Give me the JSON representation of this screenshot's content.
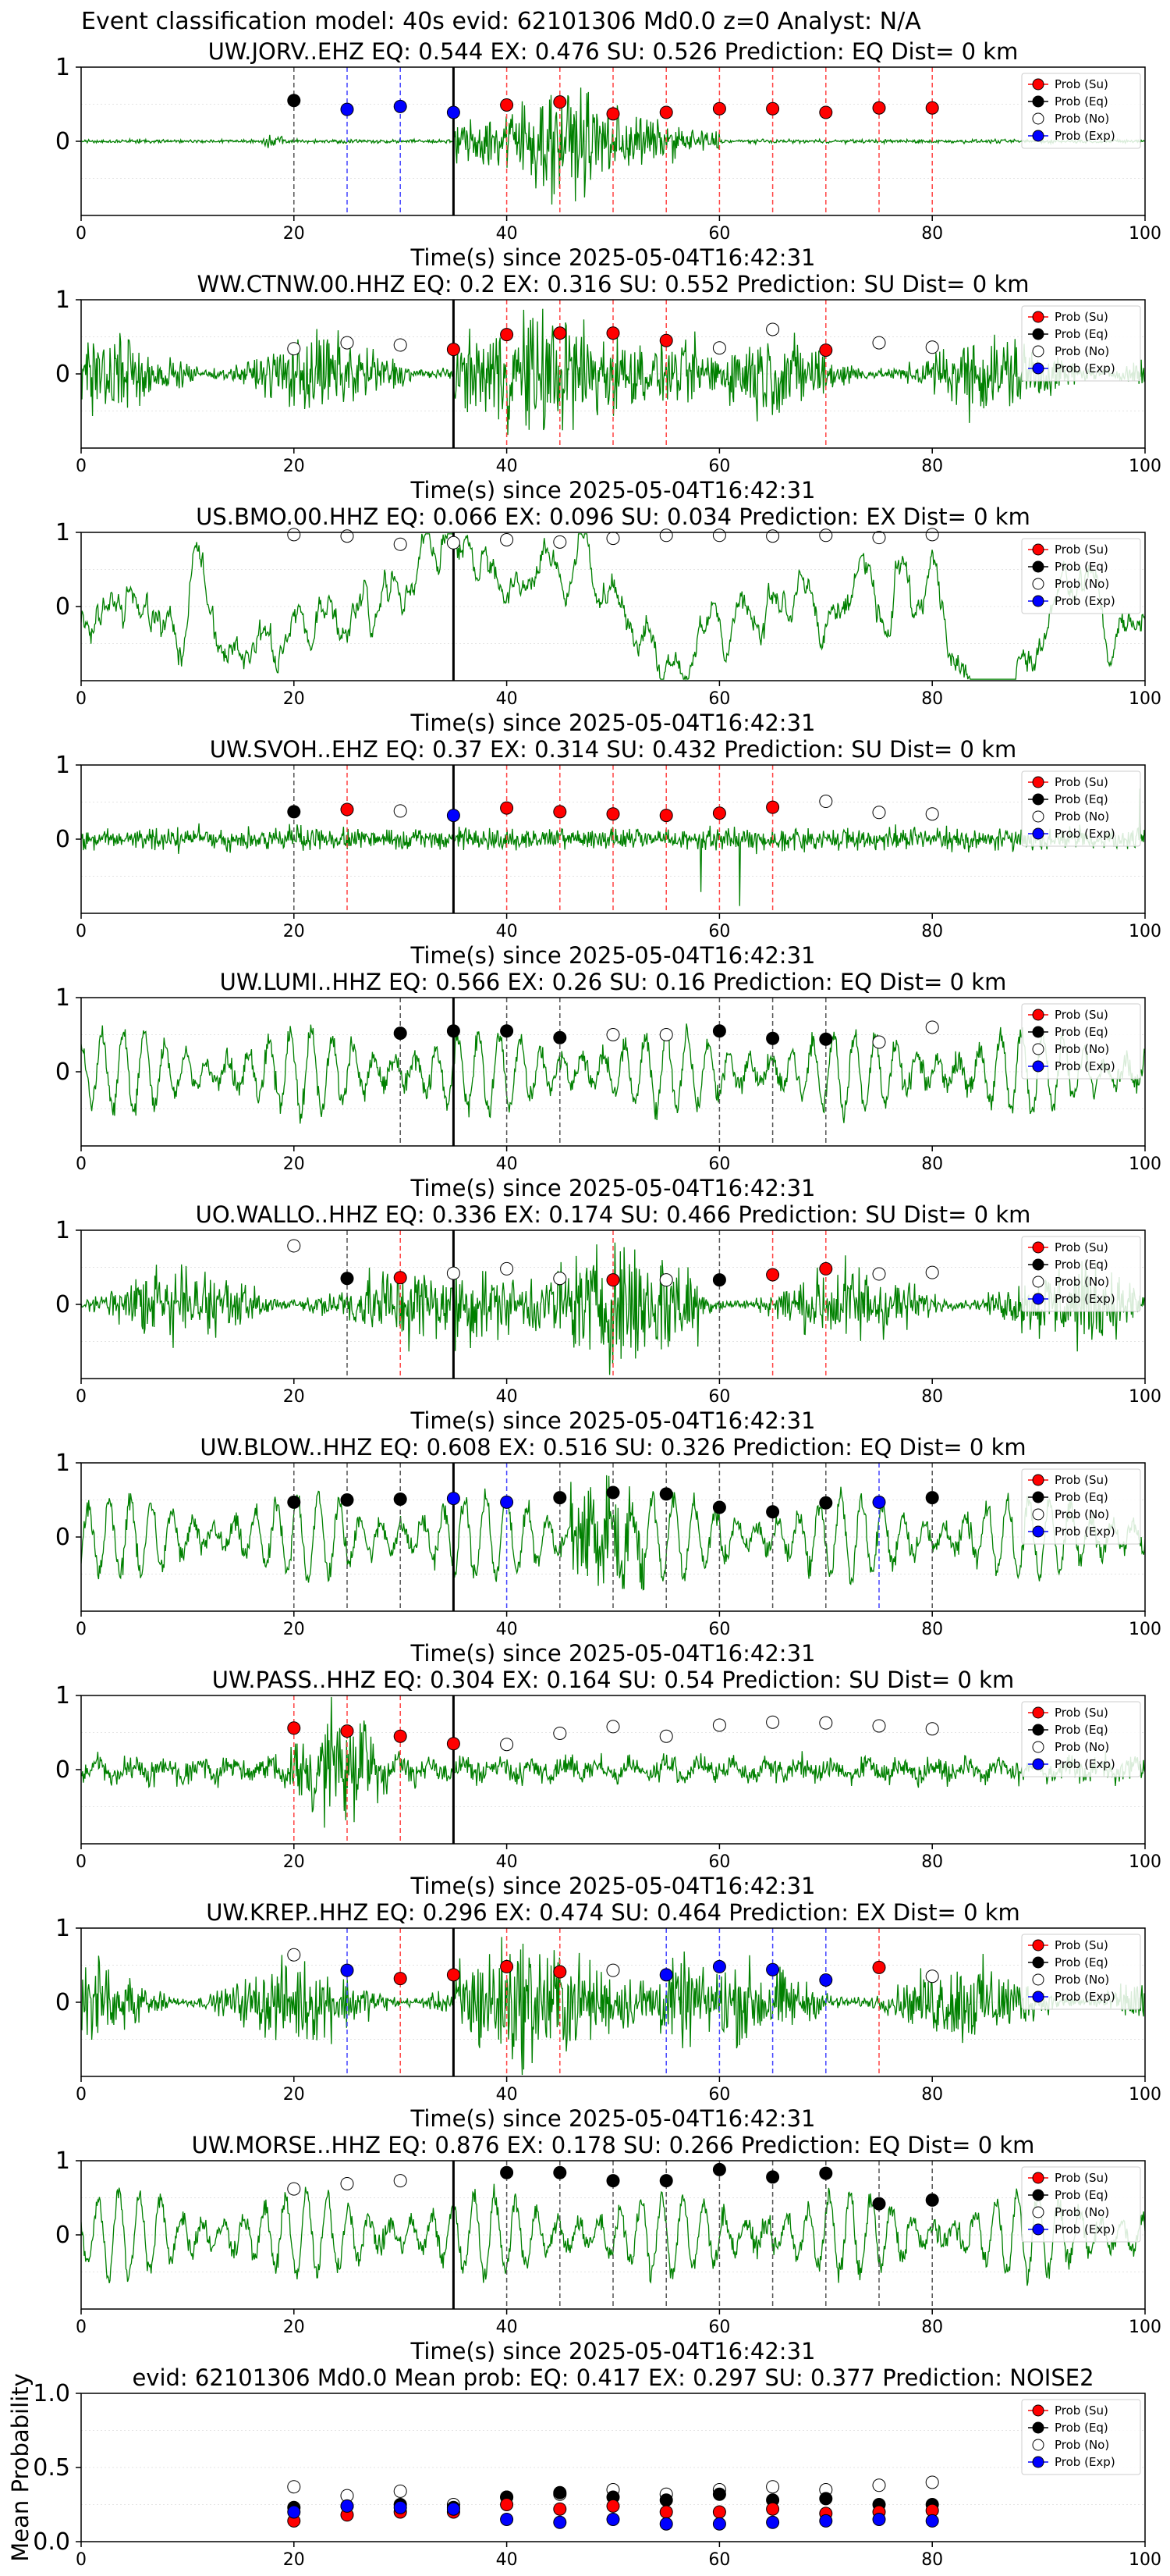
{
  "figure": {
    "suptitle": "Event classification model: 40s evid: 62101306 Md0.0 z=0 Analyst: N/A",
    "xlabel": "Time(s) since 2025-05-04T16:42:31",
    "legend": [
      "Prob (Su)",
      "Prob (Eq)",
      "Prob (No)",
      "Prob (Exp)"
    ]
  },
  "colors": {
    "su": "#ff0000",
    "eq": "#000000",
    "no": "#ffffff",
    "exp": "#0000ff",
    "waveform": "#008000",
    "eq_line": "#555555",
    "su_line": "#ff4444",
    "exp_line": "#4444ff"
  },
  "chart_data": [
    {
      "type": "line",
      "title": "UW.JORV..EHZ   EQ: 0.544  EX: 0.476  SU: 0.526   Prediction: EQ    Dist= 0 km",
      "xlim": [
        0,
        100
      ],
      "ylim": [
        -1,
        1
      ],
      "xticks": [
        0,
        20,
        40,
        60,
        80,
        100
      ],
      "yticks": [
        0,
        1
      ],
      "grid": true,
      "legend_position": "top-right",
      "onset": 35,
      "waveform_style": "impulsive",
      "points": [
        [
          20,
          0.55,
          "eq"
        ],
        [
          25,
          0.43,
          "exp"
        ],
        [
          30,
          0.47,
          "exp"
        ],
        [
          35,
          0.39,
          "exp"
        ],
        [
          40,
          0.49,
          "su"
        ],
        [
          45,
          0.53,
          "su"
        ],
        [
          50,
          0.37,
          "su"
        ],
        [
          55,
          0.39,
          "su"
        ],
        [
          60,
          0.44,
          "su"
        ],
        [
          65,
          0.44,
          "su"
        ],
        [
          70,
          0.39,
          "su"
        ],
        [
          75,
          0.45,
          "su"
        ],
        [
          80,
          0.45,
          "su"
        ]
      ]
    },
    {
      "type": "line",
      "title": "WW.CTNW.00.HHZ   EQ: 0.2  EX: 0.316  SU: 0.552   Prediction: SU    Dist= 0 km",
      "xlim": [
        0,
        100
      ],
      "ylim": [
        -1,
        1
      ],
      "xticks": [
        0,
        20,
        40,
        60,
        80,
        100
      ],
      "yticks": [
        0,
        1
      ],
      "grid": true,
      "legend_position": "top-right",
      "onset": 35,
      "waveform_style": "noisy",
      "points": [
        [
          20,
          0.34,
          "no"
        ],
        [
          25,
          0.42,
          "no"
        ],
        [
          30,
          0.39,
          "no"
        ],
        [
          35,
          0.33,
          "su"
        ],
        [
          40,
          0.53,
          "su"
        ],
        [
          45,
          0.55,
          "su"
        ],
        [
          50,
          0.55,
          "su"
        ],
        [
          55,
          0.45,
          "su"
        ],
        [
          60,
          0.35,
          "no"
        ],
        [
          65,
          0.6,
          "no"
        ],
        [
          70,
          0.32,
          "su"
        ],
        [
          75,
          0.42,
          "no"
        ],
        [
          80,
          0.36,
          "no"
        ]
      ]
    },
    {
      "type": "line",
      "title": "US.BMO.00.HHZ   EQ: 0.066  EX: 0.096  SU: 0.034   Prediction: EX    Dist= 0 km",
      "xlim": [
        0,
        100
      ],
      "ylim": [
        -1,
        1
      ],
      "xticks": [
        0,
        20,
        40,
        60,
        80,
        100
      ],
      "yticks": [
        0,
        1
      ],
      "grid": true,
      "legend_position": "top-right",
      "onset": 35,
      "waveform_style": "swell",
      "points": [
        [
          20,
          0.97,
          "no"
        ],
        [
          25,
          0.95,
          "no"
        ],
        [
          30,
          0.84,
          "no"
        ],
        [
          35,
          0.86,
          "no"
        ],
        [
          40,
          0.9,
          "no"
        ],
        [
          45,
          0.87,
          "no"
        ],
        [
          50,
          0.92,
          "no"
        ],
        [
          55,
          0.96,
          "no"
        ],
        [
          60,
          0.96,
          "no"
        ],
        [
          65,
          0.95,
          "no"
        ],
        [
          70,
          0.96,
          "no"
        ],
        [
          75,
          0.93,
          "no"
        ],
        [
          80,
          0.97,
          "no"
        ]
      ]
    },
    {
      "type": "line",
      "title": "UW.SVOH..EHZ   EQ: 0.37  EX: 0.314  SU: 0.432   Prediction: SU    Dist= 0 km",
      "xlim": [
        0,
        100
      ],
      "ylim": [
        -1,
        1
      ],
      "xticks": [
        0,
        20,
        40,
        60,
        80,
        100
      ],
      "yticks": [
        0,
        1
      ],
      "grid": true,
      "legend_position": "top-right",
      "onset": 35,
      "waveform_style": "spiky",
      "points": [
        [
          20,
          0.37,
          "eq"
        ],
        [
          25,
          0.4,
          "su"
        ],
        [
          30,
          0.38,
          "no"
        ],
        [
          35,
          0.32,
          "exp"
        ],
        [
          40,
          0.42,
          "su"
        ],
        [
          45,
          0.37,
          "su"
        ],
        [
          50,
          0.34,
          "su"
        ],
        [
          55,
          0.32,
          "su"
        ],
        [
          60,
          0.35,
          "su"
        ],
        [
          65,
          0.43,
          "su"
        ],
        [
          70,
          0.51,
          "no"
        ],
        [
          75,
          0.36,
          "no"
        ],
        [
          80,
          0.34,
          "no"
        ]
      ]
    },
    {
      "type": "line",
      "title": "UW.LUMI..HHZ   EQ: 0.566  EX: 0.26  SU: 0.16   Prediction: EQ    Dist= 0 km",
      "xlim": [
        0,
        100
      ],
      "ylim": [
        -1,
        1
      ],
      "xticks": [
        0,
        20,
        40,
        60,
        80,
        100
      ],
      "yticks": [
        0,
        1
      ],
      "grid": true,
      "legend_position": "top-right",
      "onset": 35,
      "waveform_style": "oscillating",
      "points": [
        [
          30,
          0.52,
          "eq"
        ],
        [
          35,
          0.55,
          "eq"
        ],
        [
          40,
          0.55,
          "eq"
        ],
        [
          45,
          0.46,
          "eq"
        ],
        [
          50,
          0.5,
          "no"
        ],
        [
          55,
          0.5,
          "no"
        ],
        [
          60,
          0.55,
          "eq"
        ],
        [
          65,
          0.45,
          "eq"
        ],
        [
          70,
          0.44,
          "eq"
        ],
        [
          75,
          0.4,
          "no"
        ],
        [
          80,
          0.6,
          "no"
        ]
      ]
    },
    {
      "type": "line",
      "title": "UO.WALLO..HHZ   EQ: 0.336  EX: 0.174  SU: 0.466   Prediction: SU    Dist= 0 km",
      "xlim": [
        0,
        100
      ],
      "ylim": [
        -1,
        1
      ],
      "xticks": [
        0,
        20,
        40,
        60,
        80,
        100
      ],
      "yticks": [
        0,
        1
      ],
      "grid": true,
      "legend_position": "top-right",
      "onset": 35,
      "waveform_style": "noisy",
      "points": [
        [
          20,
          0.79,
          "no"
        ],
        [
          25,
          0.35,
          "eq"
        ],
        [
          30,
          0.36,
          "su"
        ],
        [
          35,
          0.42,
          "no"
        ],
        [
          40,
          0.48,
          "no"
        ],
        [
          45,
          0.35,
          "no"
        ],
        [
          50,
          0.33,
          "su"
        ],
        [
          55,
          0.33,
          "no"
        ],
        [
          60,
          0.33,
          "eq"
        ],
        [
          65,
          0.4,
          "su"
        ],
        [
          70,
          0.48,
          "su"
        ],
        [
          75,
          0.41,
          "no"
        ],
        [
          80,
          0.43,
          "no"
        ]
      ]
    },
    {
      "type": "line",
      "title": "UW.BLOW..HHZ   EQ: 0.608  EX: 0.516  SU: 0.326   Prediction: EQ    Dist= 0 km",
      "xlim": [
        0,
        100
      ],
      "ylim": [
        -1,
        1
      ],
      "xticks": [
        0,
        20,
        40,
        60,
        80,
        100
      ],
      "yticks": [
        0,
        1
      ],
      "grid": true,
      "legend_position": "top-right",
      "onset": 35,
      "waveform_style": "oscillating",
      "points": [
        [
          20,
          0.47,
          "eq"
        ],
        [
          25,
          0.5,
          "eq"
        ],
        [
          30,
          0.51,
          "eq"
        ],
        [
          35,
          0.52,
          "exp"
        ],
        [
          40,
          0.47,
          "exp"
        ],
        [
          45,
          0.53,
          "eq"
        ],
        [
          50,
          0.6,
          "eq"
        ],
        [
          55,
          0.58,
          "eq"
        ],
        [
          60,
          0.4,
          "eq"
        ],
        [
          65,
          0.34,
          "eq"
        ],
        [
          70,
          0.46,
          "eq"
        ],
        [
          75,
          0.47,
          "exp"
        ],
        [
          80,
          0.53,
          "eq"
        ]
      ]
    },
    {
      "type": "line",
      "title": "UW.PASS..HHZ   EQ: 0.304  EX: 0.164  SU: 0.54   Prediction: SU    Dist= 0 km",
      "xlim": [
        0,
        100
      ],
      "ylim": [
        -1,
        1
      ],
      "xticks": [
        0,
        20,
        40,
        60,
        80,
        100
      ],
      "yticks": [
        0,
        1
      ],
      "grid": true,
      "legend_position": "top-right",
      "onset": 35,
      "waveform_style": "early-burst",
      "points": [
        [
          20,
          0.56,
          "su"
        ],
        [
          25,
          0.52,
          "su"
        ],
        [
          30,
          0.45,
          "su"
        ],
        [
          35,
          0.35,
          "su"
        ],
        [
          40,
          0.34,
          "no"
        ],
        [
          45,
          0.49,
          "no"
        ],
        [
          50,
          0.58,
          "no"
        ],
        [
          55,
          0.45,
          "no"
        ],
        [
          60,
          0.6,
          "no"
        ],
        [
          65,
          0.64,
          "no"
        ],
        [
          70,
          0.63,
          "no"
        ],
        [
          75,
          0.59,
          "no"
        ],
        [
          80,
          0.55,
          "no"
        ]
      ]
    },
    {
      "type": "line",
      "title": "UW.KREP..HHZ   EQ: 0.296  EX: 0.474  SU: 0.464   Prediction: EX    Dist= 0 km",
      "xlim": [
        0,
        100
      ],
      "ylim": [
        -1,
        1
      ],
      "xticks": [
        0,
        20,
        40,
        60,
        80,
        100
      ],
      "yticks": [
        0,
        1
      ],
      "grid": true,
      "legend_position": "top-right",
      "onset": 35,
      "waveform_style": "noisy",
      "points": [
        [
          20,
          0.64,
          "no"
        ],
        [
          25,
          0.43,
          "exp"
        ],
        [
          30,
          0.32,
          "su"
        ],
        [
          35,
          0.37,
          "su"
        ],
        [
          40,
          0.48,
          "su"
        ],
        [
          45,
          0.41,
          "su"
        ],
        [
          50,
          0.43,
          "no"
        ],
        [
          55,
          0.37,
          "exp"
        ],
        [
          60,
          0.48,
          "exp"
        ],
        [
          65,
          0.44,
          "exp"
        ],
        [
          70,
          0.3,
          "exp"
        ],
        [
          75,
          0.47,
          "su"
        ],
        [
          80,
          0.35,
          "no"
        ]
      ]
    },
    {
      "type": "line",
      "title": "UW.MORSE..HHZ   EQ: 0.876  EX: 0.178  SU: 0.266   Prediction: EQ    Dist= 0 km",
      "xlim": [
        0,
        100
      ],
      "ylim": [
        -1,
        1
      ],
      "xticks": [
        0,
        20,
        40,
        60,
        80,
        100
      ],
      "yticks": [
        0,
        1
      ],
      "grid": true,
      "legend_position": "top-right",
      "onset": 35,
      "waveform_style": "oscillating",
      "points": [
        [
          20,
          0.62,
          "no"
        ],
        [
          25,
          0.69,
          "no"
        ],
        [
          30,
          0.73,
          "no"
        ],
        [
          40,
          0.84,
          "eq"
        ],
        [
          45,
          0.84,
          "eq"
        ],
        [
          50,
          0.73,
          "eq"
        ],
        [
          55,
          0.73,
          "eq"
        ],
        [
          60,
          0.88,
          "eq"
        ],
        [
          65,
          0.78,
          "eq"
        ],
        [
          70,
          0.83,
          "eq"
        ],
        [
          75,
          0.42,
          "eq"
        ],
        [
          80,
          0.47,
          "eq"
        ]
      ]
    },
    {
      "type": "scatter",
      "title": "evid: 62101306  Md0.0   Mean prob:   EQ: 0.417  EX: 0.297  SU: 0.377   Prediction: NOISE2",
      "ylabel": "Mean Probability",
      "xlim": [
        0,
        100
      ],
      "ylim": [
        0,
        1
      ],
      "xticks": [
        0,
        20,
        40,
        60,
        80,
        100
      ],
      "yticks": [
        0,
        0.5,
        1
      ],
      "ytick_labels": [
        "0.0",
        "0.5",
        "1.0"
      ],
      "grid": true,
      "legend_position": "top-right",
      "x": [
        20,
        25,
        30,
        35,
        40,
        45,
        50,
        55,
        60,
        65,
        70,
        75,
        80
      ],
      "series": [
        {
          "key": "no",
          "values": [
            0.37,
            0.31,
            0.34,
            0.25,
            0.3,
            0.32,
            0.35,
            0.32,
            0.35,
            0.37,
            0.35,
            0.38,
            0.4
          ]
        },
        {
          "key": "eq",
          "values": [
            0.23,
            0.24,
            0.25,
            0.23,
            0.3,
            0.33,
            0.3,
            0.28,
            0.32,
            0.28,
            0.29,
            0.25,
            0.25
          ]
        },
        {
          "key": "su",
          "values": [
            0.14,
            0.18,
            0.2,
            0.2,
            0.25,
            0.22,
            0.24,
            0.2,
            0.2,
            0.22,
            0.19,
            0.2,
            0.21
          ]
        },
        {
          "key": "exp",
          "values": [
            0.2,
            0.24,
            0.23,
            0.22,
            0.15,
            0.13,
            0.15,
            0.12,
            0.12,
            0.13,
            0.14,
            0.15,
            0.14
          ]
        }
      ]
    }
  ]
}
